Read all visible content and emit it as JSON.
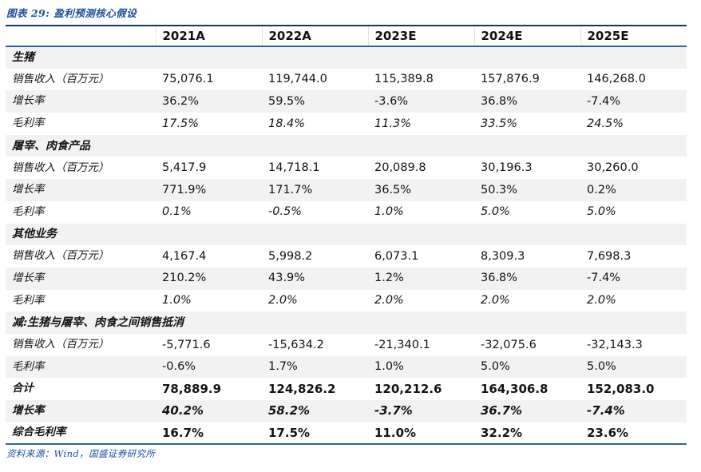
{
  "title": "图表 29: 盈利预测核心假设",
  "footer": "资料来源：Wind，国盛证券研究所",
  "colors": {
    "accent_blue": "#1F4E9C",
    "rule_dark": "#17375E",
    "rule_blue": "#35639F",
    "stripe": "#F2F2F2"
  },
  "chart_data": {
    "type": "table",
    "title": "盈利预测核心假设",
    "columns": [
      "2021A",
      "2022A",
      "2023E",
      "2024E",
      "2025E"
    ],
    "rows": [
      {
        "label": "生猪",
        "type": "section",
        "values": [
          "",
          "",
          "",
          "",
          ""
        ]
      },
      {
        "label": "销售收入（百万元）",
        "type": "data",
        "values": [
          "75,076.1",
          "119,744.0",
          "115,389.8",
          "157,876.9",
          "146,268.0"
        ]
      },
      {
        "label": "增长率",
        "type": "data",
        "values": [
          "36.2%",
          "59.5%",
          "-3.6%",
          "36.8%",
          "-7.4%"
        ]
      },
      {
        "label": "毛利率",
        "type": "data-italic",
        "values": [
          "17.5%",
          "18.4%",
          "11.3%",
          "33.5%",
          "24.5%"
        ]
      },
      {
        "label": "屠宰、肉食产品",
        "type": "section",
        "values": [
          "",
          "",
          "",
          "",
          ""
        ]
      },
      {
        "label": "销售收入（百万元）",
        "type": "data",
        "values": [
          "5,417.9",
          "14,718.1",
          "20,089.8",
          "30,196.3",
          "30,260.0"
        ]
      },
      {
        "label": "增长率",
        "type": "data",
        "values": [
          "771.9%",
          "171.7%",
          "36.5%",
          "50.3%",
          "0.2%"
        ]
      },
      {
        "label": "毛利率",
        "type": "data-italic",
        "values": [
          "0.1%",
          "-0.5%",
          "1.0%",
          "5.0%",
          "5.0%"
        ]
      },
      {
        "label": "其他业务",
        "type": "section",
        "values": [
          "",
          "",
          "",
          "",
          ""
        ]
      },
      {
        "label": "销售收入（百万元）",
        "type": "data",
        "values": [
          "4,167.4",
          "5,998.2",
          "6,073.1",
          "8,309.3",
          "7,698.3"
        ]
      },
      {
        "label": "增长率",
        "type": "data",
        "values": [
          "210.2%",
          "43.9%",
          "1.2%",
          "36.8%",
          "-7.4%"
        ]
      },
      {
        "label": "毛利率",
        "type": "data-italic",
        "values": [
          "1.0%",
          "2.0%",
          "2.0%",
          "2.0%",
          "2.0%"
        ]
      },
      {
        "label": "减:生猪与屠宰、肉食之间销售抵消",
        "type": "section",
        "values": [
          "",
          "",
          "",
          "",
          ""
        ]
      },
      {
        "label": "销售收入（百万元）",
        "type": "data",
        "values": [
          "-5,771.6",
          "-15,634.2",
          "-21,340.1",
          "-32,075.6",
          "-32,143.3"
        ]
      },
      {
        "label": "毛利率",
        "type": "data",
        "values": [
          "-0.6%",
          "1.7%",
          "1.0%",
          "5.0%",
          "5.0%"
        ]
      },
      {
        "label": "合计",
        "type": "total",
        "values": [
          "78,889.9",
          "124,826.2",
          "120,212.6",
          "164,306.8",
          "152,083.0"
        ]
      },
      {
        "label": "增长率",
        "type": "total-italic",
        "values": [
          "40.2%",
          "58.2%",
          "-3.7%",
          "36.7%",
          "-7.4%"
        ]
      },
      {
        "label": "综合毛利率",
        "type": "total",
        "values": [
          "16.7%",
          "17.5%",
          "11.0%",
          "32.2%",
          "23.6%"
        ]
      }
    ]
  }
}
